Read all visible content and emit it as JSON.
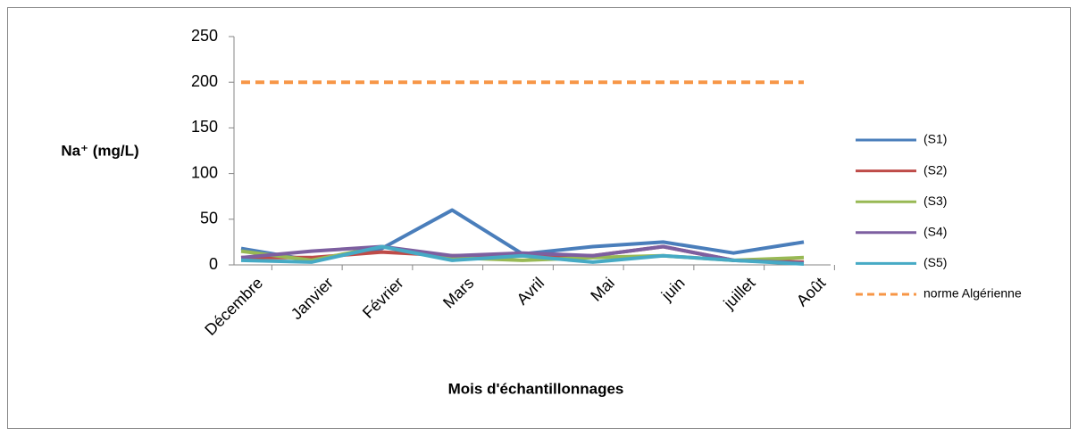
{
  "chart_data": {
    "type": "line",
    "y_label": "Na⁺ (mg/L)",
    "x_label": "Mois d'échantillonnages",
    "categories": [
      "Décembre",
      "Janvier",
      "Février",
      "Mars",
      "Avril",
      "Mai",
      "juin",
      "juillet",
      "Août"
    ],
    "series": [
      {
        "name": "(S1)",
        "color": "#4a7ebb",
        "values": [
          18,
          5,
          18,
          60,
          12,
          20,
          25,
          13,
          25
        ]
      },
      {
        "name": "(S2)",
        "color": "#be4b48",
        "values": [
          8,
          8,
          14,
          10,
          10,
          10,
          20,
          5,
          3
        ]
      },
      {
        "name": "(S3)",
        "color": "#98b954",
        "values": [
          15,
          5,
          20,
          8,
          5,
          8,
          10,
          5,
          8
        ]
      },
      {
        "name": "(S4)",
        "color": "#7d5fa0",
        "values": [
          8,
          15,
          20,
          10,
          13,
          10,
          20,
          5,
          2
        ]
      },
      {
        "name": "(S5)",
        "color": "#46aac5",
        "values": [
          5,
          3,
          20,
          5,
          10,
          3,
          10,
          5,
          1
        ]
      },
      {
        "name": "norme Algérienne",
        "color": "#f79646",
        "dashed": true,
        "values": [
          200,
          200,
          200,
          200,
          200,
          200,
          200,
          200,
          200
        ]
      }
    ],
    "ylim": [
      0,
      250
    ],
    "yticks": [
      0,
      50,
      100,
      150,
      200,
      250
    ],
    "grid": false,
    "legend": "right"
  }
}
